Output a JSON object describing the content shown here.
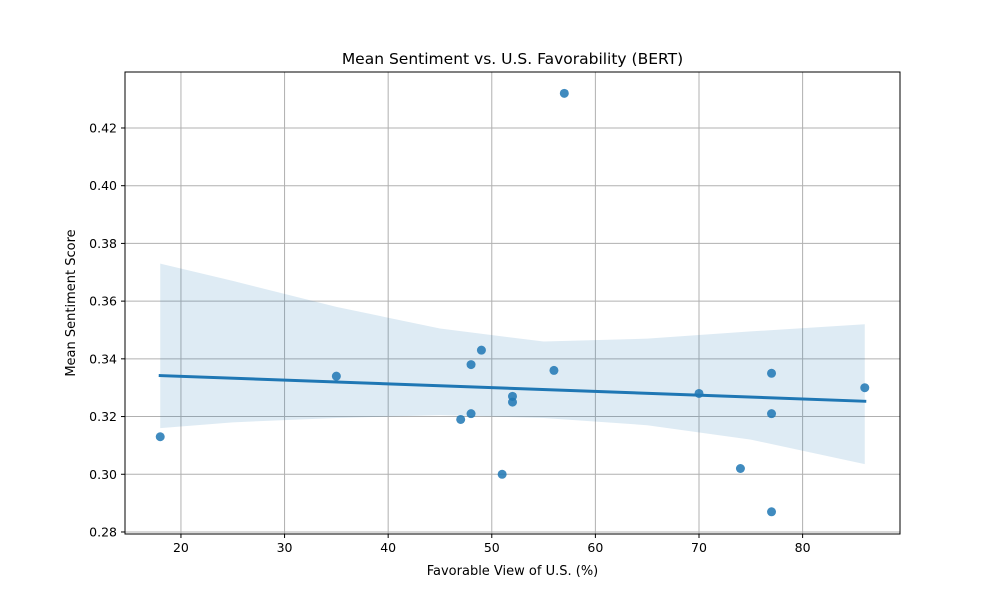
{
  "chart_data": {
    "type": "scatter",
    "title": "Mean Sentiment vs. U.S. Favorability (BERT)",
    "xlabel": "Favorable View of U.S. (%)",
    "ylabel": "Mean Sentiment Score",
    "xlim": [
      14.6,
      89.4
    ],
    "ylim": [
      0.2793,
      0.4394
    ],
    "xticks": [
      20,
      30,
      40,
      50,
      60,
      70,
      80
    ],
    "xtick_labels": [
      "20",
      "30",
      "40",
      "50",
      "60",
      "70",
      "80"
    ],
    "yticks": [
      0.28,
      0.3,
      0.32,
      0.34,
      0.36,
      0.38,
      0.4,
      0.42
    ],
    "ytick_labels": [
      "0.28",
      "0.30",
      "0.32",
      "0.34",
      "0.36",
      "0.38",
      "0.40",
      "0.42"
    ],
    "grid": true,
    "colors": {
      "points": "#1f77b4",
      "line": "#1f77b4",
      "band": "#1f77b4"
    },
    "points": [
      {
        "x": 18,
        "y": 0.313
      },
      {
        "x": 35,
        "y": 0.334
      },
      {
        "x": 47,
        "y": 0.319
      },
      {
        "x": 48,
        "y": 0.338
      },
      {
        "x": 48,
        "y": 0.321
      },
      {
        "x": 49,
        "y": 0.343
      },
      {
        "x": 51,
        "y": 0.3
      },
      {
        "x": 52,
        "y": 0.327
      },
      {
        "x": 52,
        "y": 0.325
      },
      {
        "x": 56,
        "y": 0.336
      },
      {
        "x": 57,
        "y": 0.432
      },
      {
        "x": 70,
        "y": 0.328
      },
      {
        "x": 74,
        "y": 0.302
      },
      {
        "x": 77,
        "y": 0.335
      },
      {
        "x": 77,
        "y": 0.321
      },
      {
        "x": 77,
        "y": 0.287
      },
      {
        "x": 86,
        "y": 0.33
      }
    ],
    "regression_line": {
      "x": [
        18,
        86
      ],
      "y": [
        0.3342,
        0.3253
      ]
    },
    "confidence_band": {
      "x": [
        18,
        25,
        35,
        45,
        55,
        65,
        75,
        86
      ],
      "upper": [
        0.373,
        0.367,
        0.358,
        0.3505,
        0.346,
        0.347,
        0.3495,
        0.352
      ],
      "lower": [
        0.316,
        0.318,
        0.3195,
        0.3205,
        0.3195,
        0.317,
        0.312,
        0.3035
      ]
    }
  }
}
